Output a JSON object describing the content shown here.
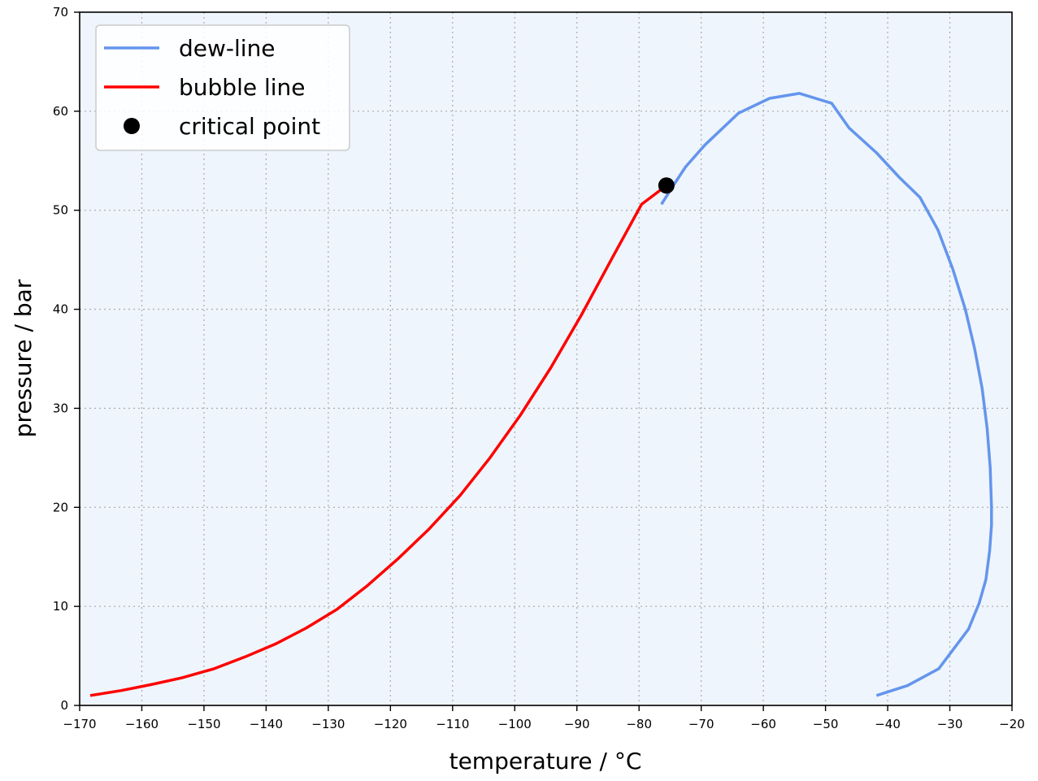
{
  "chart_data": {
    "type": "line",
    "xlabel": "temperature / °C",
    "ylabel": "pressure / bar",
    "xlim": [
      -170,
      -20
    ],
    "ylim": [
      0,
      70
    ],
    "xticks": [
      -170,
      -160,
      -150,
      -140,
      -130,
      -120,
      -110,
      -100,
      -90,
      -80,
      -70,
      -60,
      -50,
      -40,
      -30,
      -20
    ],
    "yticks": [
      0,
      10,
      20,
      30,
      40,
      50,
      60,
      70
    ],
    "grid": true,
    "plot_background": "#eef5fc",
    "legend_position": "top-left",
    "series": [
      {
        "name": "dew-line",
        "color": "#6495ed",
        "x": [
          -41.8,
          -36.8,
          -31.8,
          -27,
          -25.3,
          -24.2,
          -23.6,
          -23.3,
          -23.3,
          -23.5,
          -24,
          -24.8,
          -26,
          -27.5,
          -29.5,
          -31.9,
          -34.8,
          -38.1,
          -41.8,
          -46.2,
          -49,
          -54.2,
          -59,
          -64,
          -69.4,
          -72.5,
          -74.6,
          -76.4
        ],
        "y": [
          1,
          2,
          3.7,
          7.7,
          10.3,
          12.7,
          15.6,
          18.2,
          20,
          24,
          28,
          32,
          36,
          40,
          44,
          48,
          51.3,
          53.3,
          55.8,
          58.3,
          60.8,
          61.8,
          61.3,
          59.8,
          56.6,
          54.4,
          52.4,
          50.6
        ]
      },
      {
        "name": "bubble line",
        "color": "#ff0000",
        "x": [
          -168.3,
          -163.3,
          -158.5,
          -153.5,
          -148.4,
          -143.4,
          -138.5,
          -133.6,
          -128.6,
          -123.7,
          -118.8,
          -113.8,
          -108.8,
          -104,
          -99.1,
          -94.2,
          -89.3,
          -84.4,
          -79.6,
          -75.8
        ],
        "y": [
          1,
          1.5,
          2.1,
          2.8,
          3.7,
          4.9,
          6.2,
          7.8,
          9.7,
          12.1,
          14.8,
          17.8,
          21.2,
          25,
          29.3,
          34.1,
          39.4,
          45.1,
          50.6,
          52.4
        ]
      },
      {
        "name": "critical point",
        "color": "#000000",
        "marker": "circle",
        "x": [
          -75.6
        ],
        "y": [
          52.5
        ]
      }
    ]
  }
}
